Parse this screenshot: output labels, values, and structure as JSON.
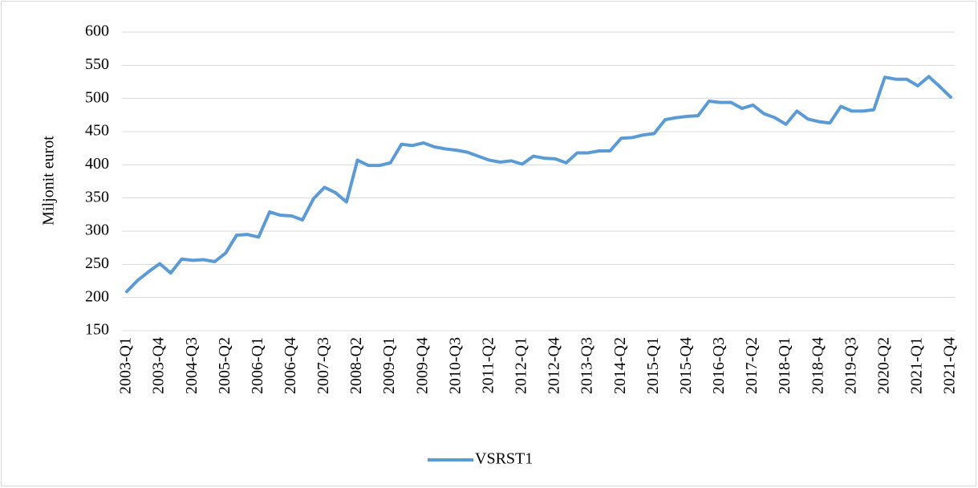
{
  "chart_data": {
    "type": "line",
    "y_axis_label": "Miljonit eurot",
    "categories": [
      "2003-Q1",
      null,
      null,
      "2003-Q4",
      null,
      null,
      "2004-Q3",
      null,
      null,
      "2005-Q2",
      null,
      null,
      "2006-Q1",
      null,
      null,
      "2006-Q4",
      null,
      null,
      "2007-Q3",
      null,
      null,
      "2008-Q2",
      null,
      null,
      "2009-Q1",
      null,
      null,
      "2009-Q4",
      null,
      null,
      "2010-Q3",
      null,
      null,
      "2011-Q2",
      null,
      null,
      "2012-Q1",
      null,
      null,
      "2012-Q4",
      null,
      null,
      "2013-Q3",
      null,
      null,
      "2014-Q2",
      null,
      null,
      "2015-Q1",
      null,
      null,
      "2015-Q4",
      null,
      null,
      "2016-Q3",
      null,
      null,
      "2017-Q2",
      null,
      null,
      "2018-Q1",
      null,
      null,
      "2018-Q4",
      null,
      null,
      "2019-Q3",
      null,
      null,
      "2020-Q2",
      null,
      null,
      "2021-Q1",
      null,
      null,
      "2021-Q4"
    ],
    "series": [
      {
        "name": "VSRST1",
        "color": "#5b9bd5",
        "values": [
          209,
          226,
          239,
          251,
          237,
          258,
          256,
          257,
          254,
          267,
          294,
          295,
          291,
          329,
          324,
          323,
          317,
          349,
          366,
          358,
          344,
          407,
          399,
          399,
          403,
          431,
          429,
          433,
          427,
          424,
          422,
          419,
          413,
          407,
          404,
          406,
          401,
          413,
          410,
          409,
          403,
          418,
          418,
          421,
          421,
          440,
          441,
          445,
          447,
          468,
          471,
          473,
          474,
          496,
          494,
          494,
          485,
          490,
          477,
          471,
          461,
          481,
          469,
          465,
          463,
          488,
          481,
          481,
          483,
          532,
          529,
          529,
          519,
          533,
          518,
          502
        ]
      }
    ],
    "ylim": [
      150,
      600
    ],
    "yticks": [
      150,
      200,
      250,
      300,
      350,
      400,
      450,
      500,
      550,
      600
    ],
    "grid": true,
    "legend": "bottom"
  }
}
